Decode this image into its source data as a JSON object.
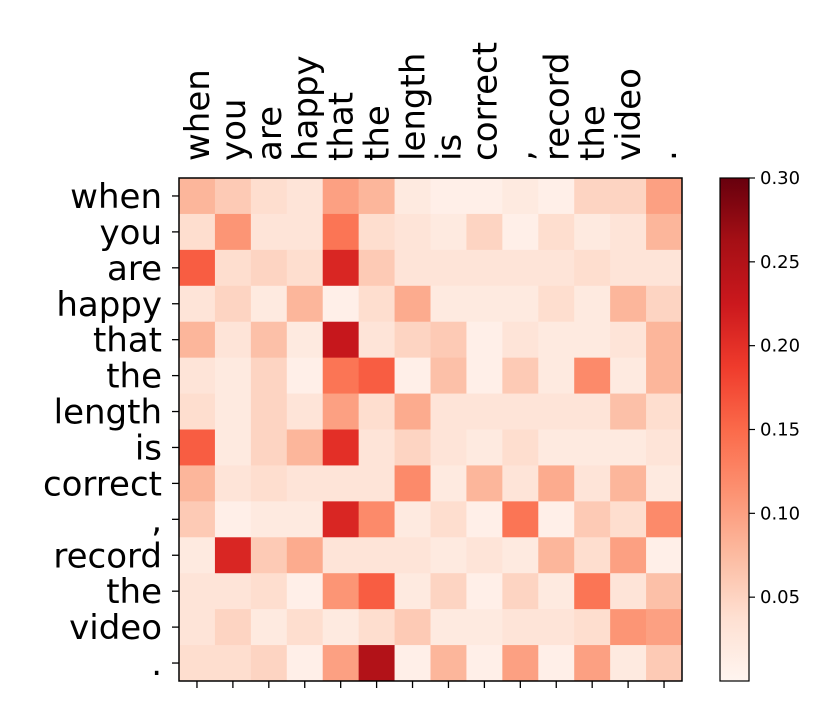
{
  "chart_data": {
    "type": "heatmap",
    "title": "",
    "xlabel": "",
    "ylabel": "",
    "x_labels": [
      "when",
      "you",
      "are",
      "happy",
      "that",
      "the",
      "length",
      "is",
      "correct",
      ",",
      "record",
      "the",
      "video",
      "."
    ],
    "y_labels": [
      "when",
      "you",
      "are",
      "happy",
      "that",
      "the",
      "length",
      "is",
      "correct",
      ",",
      "record",
      "the",
      "video",
      "."
    ],
    "x_label_position": "top",
    "colormap": "Reds",
    "vmin": 0.0,
    "vmax": 0.3,
    "colorbar_ticks": [
      "0.05",
      "0.10",
      "0.15",
      "0.20",
      "0.25",
      "0.30"
    ],
    "values": [
      [
        0.08,
        0.06,
        0.04,
        0.03,
        0.1,
        0.08,
        0.02,
        0.01,
        0.01,
        0.02,
        0.01,
        0.05,
        0.05,
        0.1
      ],
      [
        0.04,
        0.11,
        0.03,
        0.03,
        0.14,
        0.04,
        0.03,
        0.02,
        0.05,
        0.01,
        0.04,
        0.02,
        0.03,
        0.08
      ],
      [
        0.16,
        0.04,
        0.05,
        0.04,
        0.21,
        0.06,
        0.03,
        0.03,
        0.03,
        0.03,
        0.03,
        0.04,
        0.03,
        0.03
      ],
      [
        0.03,
        0.05,
        0.02,
        0.08,
        0.01,
        0.04,
        0.09,
        0.02,
        0.02,
        0.02,
        0.04,
        0.02,
        0.08,
        0.05
      ],
      [
        0.08,
        0.03,
        0.07,
        0.02,
        0.23,
        0.03,
        0.05,
        0.06,
        0.01,
        0.03,
        0.02,
        0.02,
        0.03,
        0.08
      ],
      [
        0.03,
        0.02,
        0.05,
        0.01,
        0.14,
        0.16,
        0.01,
        0.07,
        0.01,
        0.06,
        0.02,
        0.12,
        0.02,
        0.08
      ],
      [
        0.04,
        0.02,
        0.05,
        0.03,
        0.1,
        0.04,
        0.09,
        0.03,
        0.03,
        0.03,
        0.03,
        0.03,
        0.07,
        0.04
      ],
      [
        0.16,
        0.02,
        0.05,
        0.08,
        0.2,
        0.03,
        0.05,
        0.03,
        0.02,
        0.04,
        0.02,
        0.02,
        0.02,
        0.03
      ],
      [
        0.08,
        0.03,
        0.04,
        0.03,
        0.03,
        0.03,
        0.12,
        0.02,
        0.08,
        0.03,
        0.09,
        0.03,
        0.08,
        0.02
      ],
      [
        0.06,
        0.01,
        0.02,
        0.02,
        0.21,
        0.12,
        0.02,
        0.04,
        0.01,
        0.14,
        0.01,
        0.06,
        0.04,
        0.12
      ],
      [
        0.02,
        0.21,
        0.06,
        0.09,
        0.03,
        0.03,
        0.03,
        0.02,
        0.03,
        0.02,
        0.08,
        0.04,
        0.1,
        0.01
      ],
      [
        0.03,
        0.03,
        0.04,
        0.01,
        0.11,
        0.16,
        0.02,
        0.05,
        0.01,
        0.05,
        0.02,
        0.14,
        0.03,
        0.07
      ],
      [
        0.03,
        0.05,
        0.02,
        0.04,
        0.02,
        0.04,
        0.06,
        0.02,
        0.02,
        0.03,
        0.03,
        0.04,
        0.11,
        0.1
      ],
      [
        0.04,
        0.04,
        0.05,
        0.01,
        0.1,
        0.25,
        0.01,
        0.08,
        0.01,
        0.1,
        0.01,
        0.1,
        0.02,
        0.06
      ]
    ]
  }
}
